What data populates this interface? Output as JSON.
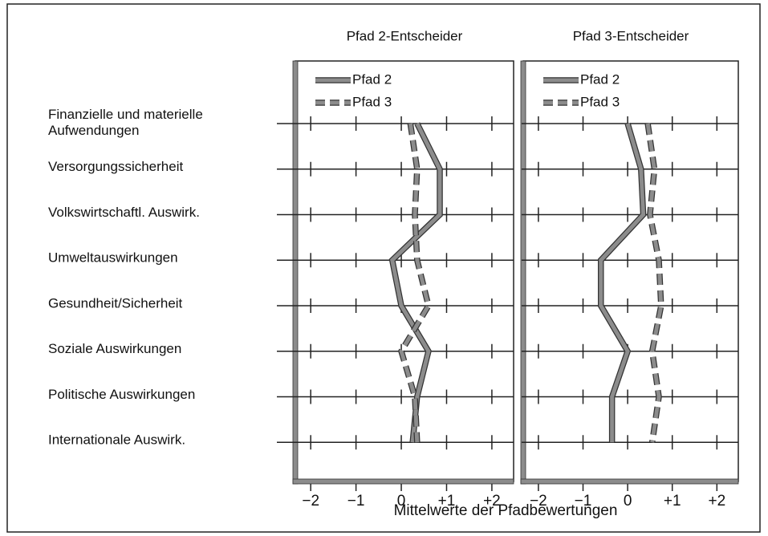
{
  "chart_data": [
    {
      "type": "line",
      "title": "Pfad 2-Entscheider",
      "categories": [
        "Finanzielle und materielle Aufwendungen",
        "Versorgungssicherheit",
        "Volkswirtschaftl. Auswirk.",
        "Umweltauswirkungen",
        "Gesundheit/Sicherheit",
        "Soziale Auswirkungen",
        "Politische Auswirkungen",
        "Internationale Auswirk."
      ],
      "series": [
        {
          "name": "Pfad 2",
          "color": "#8c8c8c",
          "style": "solid",
          "values": [
            0.35,
            0.85,
            0.85,
            -0.2,
            0.0,
            0.6,
            0.35,
            0.25
          ]
        },
        {
          "name": "Pfad 3",
          "color": "#8c8c8c",
          "style": "dashed",
          "values": [
            0.2,
            0.35,
            0.3,
            0.35,
            0.6,
            0.0,
            0.3,
            0.35
          ]
        }
      ],
      "xlabel": "Mittelwerte der Pfadbewertungen",
      "xlim": [
        -2.34,
        2.48
      ],
      "xticks": [
        {
          "value": -2,
          "label": "−2"
        },
        {
          "value": -1,
          "label": "−1"
        },
        0,
        {
          "value": 1,
          "label": "+1"
        },
        {
          "value": 2,
          "label": "+2"
        }
      ],
      "legend": "upper left"
    },
    {
      "type": "line",
      "title": "Pfad 3-Entscheider",
      "series": [
        {
          "name": "Pfad 2",
          "color": "#8c8c8c",
          "style": "solid",
          "values": [
            0.0,
            0.3,
            0.35,
            -0.6,
            -0.6,
            0.0,
            -0.35,
            -0.35
          ]
        },
        {
          "name": "Pfad 3",
          "color": "#8c8c8c",
          "style": "dashed",
          "values": [
            0.45,
            0.6,
            0.5,
            0.7,
            0.75,
            0.55,
            0.7,
            0.55
          ]
        }
      ],
      "xlim": [
        -2.34,
        2.48
      ],
      "xticks": [
        {
          "value": -2,
          "label": "−2"
        },
        {
          "value": -1,
          "label": "−1"
        },
        0,
        {
          "value": 1,
          "label": "+1"
        },
        {
          "value": 2,
          "label": "+2"
        }
      ],
      "legend": "upper left"
    }
  ]
}
